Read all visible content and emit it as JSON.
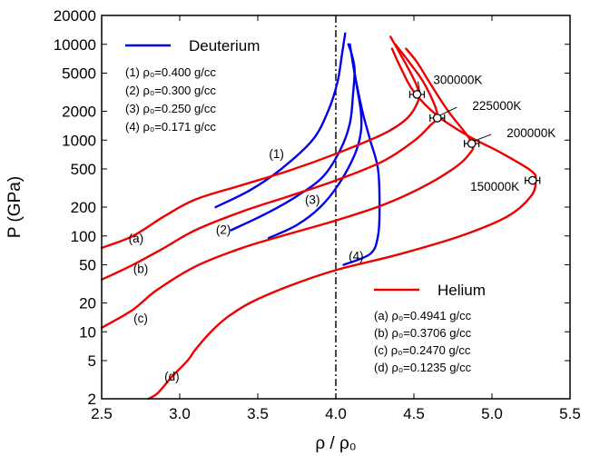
{
  "chart_data": {
    "type": "line",
    "xlabel": "ρ / ρ₀",
    "ylabel": "P (GPa)",
    "xlim": [
      2.5,
      5.5
    ],
    "ylim": [
      2,
      20000
    ],
    "yscale": "log",
    "xticks": [
      2.5,
      3.0,
      3.5,
      4.0,
      4.5,
      5.0,
      5.5
    ],
    "xtick_labels": [
      "2.5",
      "3.0",
      "3.5",
      "4.0",
      "4.5",
      "5.0",
      "5.5"
    ],
    "yticks": [
      2,
      5,
      10,
      20,
      50,
      100,
      200,
      500,
      1000,
      2000,
      5000,
      10000,
      20000
    ],
    "ytick_labels": [
      "2",
      "5",
      "10",
      "20",
      "50",
      "100",
      "200",
      "500",
      "1000",
      "2000",
      "5000",
      "10000",
      "20000"
    ],
    "colors": {
      "deuterium": "#0000ee",
      "helium": "#ee0000"
    },
    "reference_line": {
      "x": 4.0,
      "style": "dash-dot"
    },
    "legends": {
      "deuterium": {
        "name": "Deuterium",
        "entries": [
          "(1) ρ₀=0.400 g/cc",
          "(2) ρ₀=0.300 g/cc",
          "(3) ρ₀=0.250 g/cc",
          "(4) ρ₀=0.171 g/cc"
        ]
      },
      "helium": {
        "name": "Helium",
        "entries": [
          "(a) ρ₀=0.4941 g/cc",
          "(b) ρ₀=0.3706 g/cc",
          "(c) ρ₀=0.2470 g/cc",
          "(d) ρ₀=0.1235 g/cc"
        ]
      }
    },
    "series": [
      {
        "group": "deuterium",
        "label": "(1)",
        "label_at": [
          3.62,
          650
        ],
        "points": [
          [
            3.23,
            200
          ],
          [
            3.45,
            300
          ],
          [
            3.65,
            500
          ],
          [
            3.85,
            1000
          ],
          [
            3.95,
            2000
          ],
          [
            4.01,
            4000
          ],
          [
            4.04,
            8000
          ],
          [
            4.06,
            13000
          ]
        ]
      },
      {
        "group": "deuterium",
        "label": "(2)",
        "label_at": [
          3.28,
          105
        ],
        "points": [
          [
            3.33,
            115
          ],
          [
            3.55,
            170
          ],
          [
            3.75,
            260
          ],
          [
            3.92,
            420
          ],
          [
            4.03,
            800
          ],
          [
            4.09,
            1500
          ],
          [
            4.11,
            3000
          ],
          [
            4.12,
            5500
          ],
          [
            4.1,
            8000
          ],
          [
            4.08,
            10000
          ]
        ]
      },
      {
        "group": "deuterium",
        "label": "(3)",
        "label_at": [
          3.85,
          215
        ],
        "points": [
          [
            3.57,
            95
          ],
          [
            3.75,
            130
          ],
          [
            3.9,
            200
          ],
          [
            4.02,
            350
          ],
          [
            4.12,
            700
          ],
          [
            4.16,
            1200
          ],
          [
            4.16,
            2000
          ],
          [
            4.13,
            4000
          ],
          [
            4.1,
            8000
          ]
        ]
      },
      {
        "group": "deuterium",
        "label": "(4)",
        "label_at": [
          4.13,
          56
        ],
        "points": [
          [
            4.05,
            50
          ],
          [
            4.22,
            65
          ],
          [
            4.27,
            100
          ],
          [
            4.28,
            200
          ],
          [
            4.27,
            500
          ],
          [
            4.22,
            1000
          ],
          [
            4.17,
            2000
          ],
          [
            4.12,
            5000
          ],
          [
            4.09,
            10000
          ]
        ]
      },
      {
        "group": "helium",
        "label": "(a)",
        "label_at": [
          2.72,
          85
        ],
        "points": [
          [
            2.5,
            75
          ],
          [
            2.7,
            100
          ],
          [
            2.9,
            160
          ],
          [
            3.1,
            240
          ],
          [
            3.4,
            340
          ],
          [
            3.7,
            480
          ],
          [
            4.0,
            720
          ],
          [
            4.3,
            1150
          ],
          [
            4.45,
            1650
          ],
          [
            4.52,
            2400
          ],
          [
            4.53,
            3200
          ],
          [
            4.48,
            5000
          ],
          [
            4.35,
            12000
          ]
        ]
      },
      {
        "group": "helium",
        "label": "(b)",
        "label_at": [
          2.75,
          41
        ],
        "points": [
          [
            2.5,
            35
          ],
          [
            2.7,
            50
          ],
          [
            2.9,
            75
          ],
          [
            3.1,
            115
          ],
          [
            3.4,
            180
          ],
          [
            3.7,
            260
          ],
          [
            4.0,
            380
          ],
          [
            4.3,
            600
          ],
          [
            4.5,
            980
          ],
          [
            4.6,
            1400
          ],
          [
            4.65,
            1850
          ],
          [
            4.57,
            3800
          ],
          [
            4.47,
            6500
          ],
          [
            4.38,
            10000
          ]
        ]
      },
      {
        "group": "helium",
        "label": "(c)",
        "label_at": [
          2.75,
          12.5
        ],
        "points": [
          [
            2.5,
            11
          ],
          [
            2.7,
            17
          ],
          [
            2.85,
            27
          ],
          [
            3.1,
            48
          ],
          [
            3.4,
            75
          ],
          [
            3.7,
            105
          ],
          [
            4.0,
            145
          ],
          [
            4.3,
            210
          ],
          [
            4.55,
            320
          ],
          [
            4.75,
            500
          ],
          [
            4.85,
            700
          ],
          [
            4.87,
            950
          ],
          [
            4.72,
            2000
          ],
          [
            4.6,
            4000
          ],
          [
            4.52,
            6500
          ],
          [
            4.45,
            9000
          ]
        ]
      },
      {
        "group": "helium",
        "label": "(d)",
        "label_at": [
          2.95,
          3.1
        ],
        "points": [
          [
            2.8,
            2
          ],
          [
            2.86,
            2.3
          ],
          [
            2.95,
            3.4
          ],
          [
            3.05,
            5.0
          ],
          [
            3.1,
            6.5
          ],
          [
            3.2,
            10
          ],
          [
            3.3,
            14
          ],
          [
            3.45,
            20
          ],
          [
            3.7,
            30
          ],
          [
            4.0,
            44
          ],
          [
            4.4,
            64
          ],
          [
            4.8,
            100
          ],
          [
            5.1,
            160
          ],
          [
            5.25,
            260
          ],
          [
            5.28,
            380
          ],
          [
            5.25,
            480
          ],
          [
            5.05,
            750
          ],
          [
            4.85,
            1100
          ],
          [
            4.65,
            1800
          ],
          [
            4.5,
            3200
          ],
          [
            4.42,
            5500
          ],
          [
            4.36,
            9000
          ]
        ]
      }
    ],
    "isotherm_markers": [
      {
        "label": "300000K",
        "x": 4.52,
        "y": 3000,
        "label_at": [
          4.7,
          4300
        ]
      },
      {
        "label": "225000K",
        "x": 4.65,
        "y": 1700,
        "label_at": [
          4.95,
          2300
        ]
      },
      {
        "label": "200000K",
        "x": 4.87,
        "y": 920,
        "label_at": [
          5.17,
          1200
        ]
      },
      {
        "label": "150000K",
        "x": 5.26,
        "y": 380,
        "label_at": [
          4.96,
          330
        ]
      }
    ]
  }
}
